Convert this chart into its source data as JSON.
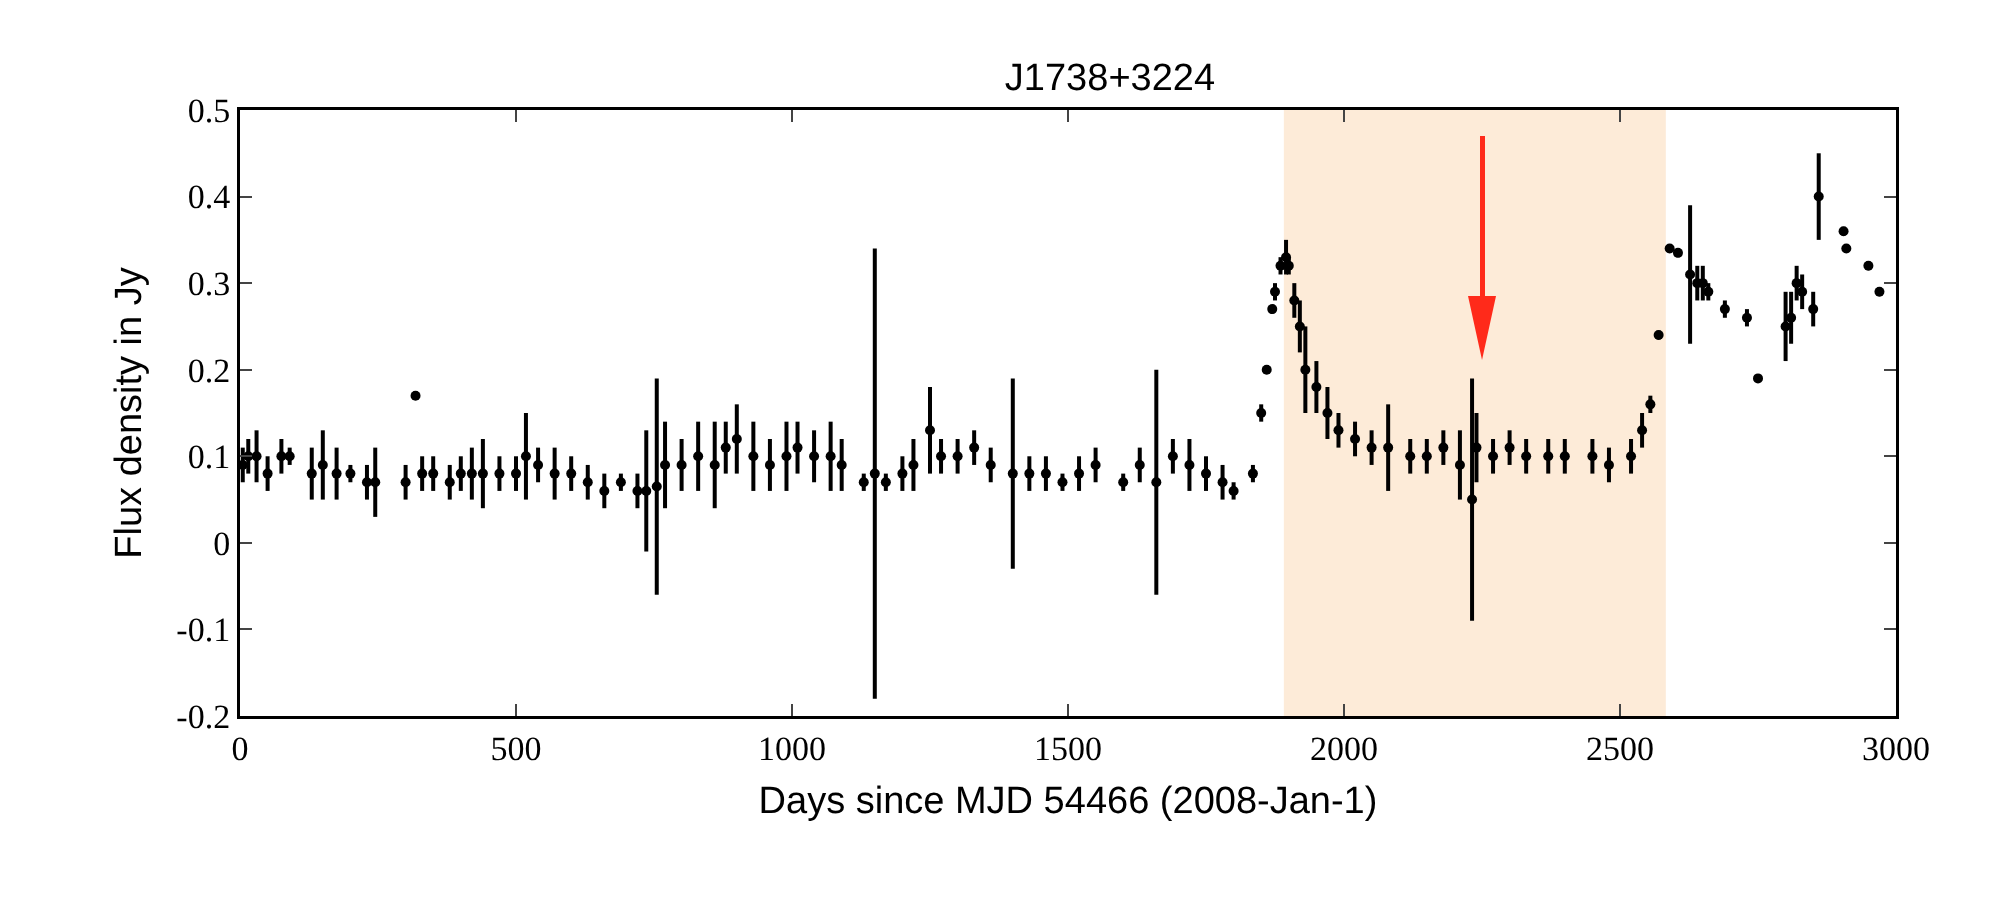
{
  "chart_data": {
    "type": "scatter",
    "title": "J1738+3224",
    "xlabel": "Days since MJD 54466 (2008-Jan-1)",
    "ylabel": "Flux density in Jy",
    "xlim": [
      0,
      3000
    ],
    "xticks": [
      0,
      500,
      1000,
      1500,
      2000,
      2500,
      3000
    ],
    "ylim": [
      -0.2,
      0.5
    ],
    "yticks": [
      -0.2,
      -0.1,
      0.0,
      0.1,
      0.2,
      0.3,
      0.4,
      0.5
    ],
    "marker": "circle",
    "bands": [
      {
        "axis": "x",
        "from": 1891,
        "to": 2583,
        "color": "#fdebd8"
      }
    ],
    "series": [
      {
        "color": "#000000",
        "x": [
          5,
          15,
          30,
          50,
          75,
          90,
          130,
          150,
          175,
          200,
          230,
          245,
          300,
          318,
          330,
          350,
          380,
          400,
          420,
          440,
          470,
          500,
          518,
          540,
          570,
          600,
          630,
          660,
          690,
          720,
          736,
          755,
          770,
          800,
          830,
          860,
          880,
          900,
          930,
          960,
          990,
          1010,
          1040,
          1070,
          1090,
          1130,
          1150,
          1170,
          1200,
          1220,
          1250,
          1270,
          1300,
          1330,
          1360,
          1400,
          1430,
          1460,
          1490,
          1520,
          1550,
          1600,
          1630,
          1660,
          1690,
          1720,
          1750,
          1780,
          1800,
          1835,
          1850,
          1860,
          1870,
          1875,
          1885,
          1895,
          1900,
          1910,
          1920,
          1930,
          1950,
          1970,
          1990,
          2020,
          2050,
          2080,
          2120,
          2150,
          2180,
          2210,
          2232,
          2240,
          2270,
          2300,
          2330,
          2370,
          2400,
          2450,
          2480,
          2520,
          2540,
          2555,
          2570,
          2590,
          2605,
          2627,
          2640,
          2650,
          2660,
          2690,
          2730,
          2750,
          2800,
          2810,
          2820,
          2830,
          2850,
          2860,
          2905,
          2910,
          2950,
          2970
        ],
        "values": [
          0.09,
          0.1,
          0.1,
          0.08,
          0.1,
          0.1,
          0.08,
          0.09,
          0.08,
          0.08,
          0.07,
          0.07,
          0.07,
          0.17,
          0.08,
          0.08,
          0.07,
          0.08,
          0.08,
          0.08,
          0.08,
          0.08,
          0.1,
          0.09,
          0.08,
          0.08,
          0.07,
          0.06,
          0.07,
          0.06,
          0.06,
          0.065,
          0.09,
          0.09,
          0.1,
          0.09,
          0.11,
          0.12,
          0.1,
          0.09,
          0.1,
          0.11,
          0.1,
          0.1,
          0.09,
          0.07,
          0.08,
          0.07,
          0.08,
          0.09,
          0.13,
          0.1,
          0.1,
          0.11,
          0.09,
          0.08,
          0.08,
          0.08,
          0.07,
          0.08,
          0.09,
          0.07,
          0.09,
          0.07,
          0.1,
          0.09,
          0.08,
          0.07,
          0.06,
          0.08,
          0.15,
          0.2,
          0.27,
          0.29,
          0.32,
          0.33,
          0.32,
          0.28,
          0.25,
          0.2,
          0.18,
          0.15,
          0.13,
          0.12,
          0.11,
          0.11,
          0.1,
          0.1,
          0.11,
          0.09,
          0.05,
          0.11,
          0.1,
          0.11,
          0.1,
          0.1,
          0.1,
          0.1,
          0.09,
          0.1,
          0.13,
          0.16,
          0.24,
          0.34,
          0.335,
          0.31,
          0.3,
          0.3,
          0.29,
          0.27,
          0.26,
          0.19,
          0.25,
          0.26,
          0.3,
          0.29,
          0.27,
          0.4,
          0.36,
          0.34,
          0.32,
          0.29
        ],
        "errors": [
          0.02,
          0.02,
          0.03,
          0.02,
          0.02,
          0.01,
          0.03,
          0.04,
          0.03,
          0.01,
          0.02,
          0.04,
          0.02,
          0.005,
          0.02,
          0.02,
          0.02,
          0.02,
          0.03,
          0.04,
          0.02,
          0.02,
          0.05,
          0.02,
          0.03,
          0.02,
          0.02,
          0.02,
          0.01,
          0.02,
          0.07,
          0.125,
          0.05,
          0.03,
          0.04,
          0.05,
          0.03,
          0.04,
          0.04,
          0.03,
          0.04,
          0.03,
          0.03,
          0.04,
          0.03,
          0.01,
          0.26,
          0.01,
          0.02,
          0.03,
          0.05,
          0.02,
          0.02,
          0.02,
          0.02,
          0.11,
          0.02,
          0.02,
          0.01,
          0.02,
          0.02,
          0.01,
          0.02,
          0.13,
          0.02,
          0.03,
          0.02,
          0.02,
          0.01,
          0.01,
          0.01,
          0.005,
          0.005,
          0.01,
          0.01,
          0.02,
          0.01,
          0.02,
          0.03,
          0.05,
          0.03,
          0.03,
          0.02,
          0.02,
          0.02,
          0.05,
          0.02,
          0.02,
          0.02,
          0.04,
          0.14,
          0.04,
          0.02,
          0.02,
          0.02,
          0.02,
          0.02,
          0.02,
          0.02,
          0.02,
          0.02,
          0.01,
          0.005,
          0.005,
          0.005,
          0.08,
          0.02,
          0.02,
          0.01,
          0.01,
          0.01,
          0.005,
          0.04,
          0.03,
          0.02,
          0.02,
          0.02,
          0.05,
          0.005,
          0.005,
          0.005,
          0.005
        ]
      }
    ]
  }
}
